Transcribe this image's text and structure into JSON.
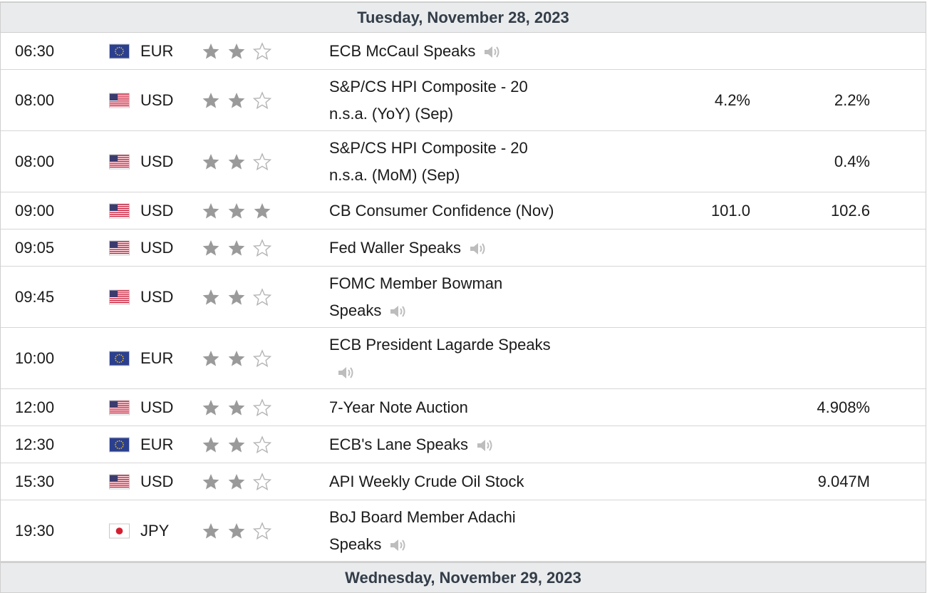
{
  "days": [
    {
      "label": "Tuesday, November 28, 2023"
    },
    {
      "label": "Wednesday, November 29, 2023"
    }
  ],
  "colors": {
    "header_bg": "#e9ebed",
    "header_text": "#333d48",
    "star_filled": "#9a9a9a",
    "star_empty": "#b4b4b4",
    "speaker": "#bdbdbd",
    "row_border": "#d6d6d6"
  },
  "events": [
    {
      "time": "06:30",
      "currency": "EUR",
      "flag": "eu-flag-icon",
      "importance": 2,
      "title_lines": [
        "ECB McCaul Speaks"
      ],
      "speech": true,
      "actual": "",
      "previous": ""
    },
    {
      "time": "08:00",
      "currency": "USD",
      "flag": "us-flag-icon",
      "importance": 2,
      "title_lines": [
        "S&P/CS HPI Composite - 20",
        "n.s.a. (YoY) (Sep)"
      ],
      "speech": false,
      "actual": "4.2%",
      "previous": "2.2%"
    },
    {
      "time": "08:00",
      "currency": "USD",
      "flag": "us-flag-icon",
      "importance": 2,
      "title_lines": [
        "S&P/CS HPI Composite - 20",
        "n.s.a. (MoM) (Sep)"
      ],
      "speech": false,
      "actual": "",
      "previous": "0.4%"
    },
    {
      "time": "09:00",
      "currency": "USD",
      "flag": "us-flag-icon",
      "importance": 3,
      "title_lines": [
        "CB Consumer Confidence (Nov)"
      ],
      "speech": false,
      "actual": "101.0",
      "previous": "102.6"
    },
    {
      "time": "09:05",
      "currency": "USD",
      "flag": "us-flag-icon",
      "importance": 2,
      "title_lines": [
        "Fed Waller Speaks"
      ],
      "speech": true,
      "actual": "",
      "previous": ""
    },
    {
      "time": "09:45",
      "currency": "USD",
      "flag": "us-flag-icon",
      "importance": 2,
      "title_lines": [
        "FOMC Member Bowman",
        "Speaks"
      ],
      "speech": true,
      "actual": "",
      "previous": ""
    },
    {
      "time": "10:00",
      "currency": "EUR",
      "flag": "eu-flag-icon",
      "importance": 2,
      "title_lines": [
        "ECB President Lagarde Speaks",
        ""
      ],
      "speech": true,
      "actual": "",
      "previous": ""
    },
    {
      "time": "12:00",
      "currency": "USD",
      "flag": "us-flag-icon",
      "importance": 2,
      "title_lines": [
        "7-Year Note Auction"
      ],
      "speech": false,
      "actual": "",
      "previous": "4.908%"
    },
    {
      "time": "12:30",
      "currency": "EUR",
      "flag": "eu-flag-icon",
      "importance": 2,
      "title_lines": [
        "ECB's Lane Speaks"
      ],
      "speech": true,
      "actual": "",
      "previous": ""
    },
    {
      "time": "15:30",
      "currency": "USD",
      "flag": "us-flag-icon",
      "importance": 2,
      "title_lines": [
        "API Weekly Crude Oil Stock"
      ],
      "speech": false,
      "actual": "",
      "previous": "9.047M"
    },
    {
      "time": "19:30",
      "currency": "JPY",
      "flag": "jp-flag-icon",
      "importance": 2,
      "title_lines": [
        "BoJ Board Member Adachi",
        "Speaks"
      ],
      "speech": true,
      "actual": "",
      "previous": ""
    }
  ]
}
